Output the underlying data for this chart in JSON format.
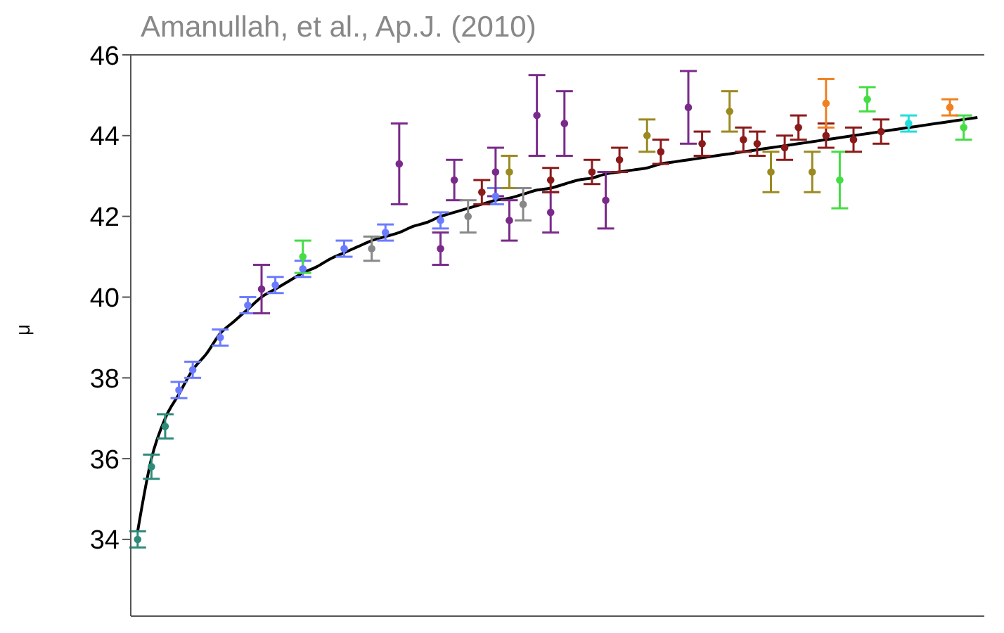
{
  "chart_data": {
    "type": "scatter",
    "annotations": [
      "Amanullah, et al., Ap.J. (2010)"
    ],
    "ylabel": "μ",
    "categories": [
      null,
      null,
      null,
      null,
      null,
      null,
      null,
      null,
      null,
      null,
      null,
      null,
      null,
      null,
      null,
      null,
      null,
      null,
      null,
      null,
      null,
      null,
      null,
      null,
      null,
      null,
      null,
      null,
      null,
      null,
      null,
      null,
      null,
      null,
      null,
      null,
      null,
      null,
      null,
      null,
      null,
      null,
      null,
      null,
      null,
      null,
      null,
      null,
      null,
      null,
      null,
      null,
      null,
      null,
      null,
      null,
      null,
      null,
      null,
      null,
      null,
      null
    ],
    "ylim": [
      32.1,
      46
    ],
    "yticks": [
      34,
      36,
      38,
      40,
      42,
      44,
      46
    ],
    "tick_labels": "y",
    "marker": "circle",
    "grid": false,
    "series": [
      {
        "type": "line",
        "color": "#000000",
        "line_style": "solid",
        "marker": "none",
        "values": [
          34.2,
          36.0,
          37.0,
          37.6,
          38.2,
          38.6,
          39.1,
          39.4,
          39.7,
          40.0,
          40.2,
          40.4,
          40.6,
          40.75,
          40.95,
          41.1,
          41.25,
          41.4,
          41.5,
          41.6,
          41.75,
          41.85,
          42.0,
          42.1,
          42.2,
          42.3,
          42.4,
          42.45,
          42.55,
          42.65,
          42.7,
          42.8,
          42.9,
          42.95,
          43.05,
          43.1,
          43.15,
          43.2,
          43.3,
          43.35,
          43.4,
          43.45,
          43.5,
          43.55,
          43.6,
          43.65,
          43.7,
          43.75,
          43.8,
          43.85,
          43.9,
          43.95,
          44.0,
          44.05,
          44.1,
          44.15,
          44.2,
          44.25,
          44.3,
          44.35,
          44.4,
          44.45
        ]
      },
      {
        "color": "#2e8b7a",
        "values": [
          34.0,
          35.8,
          36.8,
          null,
          null,
          null,
          null,
          null,
          null,
          null,
          null,
          null,
          null,
          null,
          null,
          null,
          null,
          null,
          null,
          null,
          null,
          null,
          null,
          null,
          null,
          null,
          null,
          null,
          null,
          null,
          null,
          null,
          null,
          null,
          null,
          null,
          null,
          null,
          null,
          null,
          null,
          null,
          null,
          null,
          null,
          null,
          null,
          null,
          null,
          null,
          null,
          null,
          null,
          null,
          null,
          null,
          null,
          null,
          null,
          null,
          null,
          null
        ],
        "errors": [
          0.2,
          0.3,
          0.3,
          null,
          null,
          null,
          null,
          null,
          null,
          null,
          null,
          null,
          null,
          null,
          null,
          null,
          null,
          null,
          null,
          null,
          null,
          null,
          null,
          null,
          null,
          null,
          null,
          null,
          null,
          null,
          null,
          null,
          null,
          null,
          null,
          null,
          null,
          null,
          null,
          null,
          null,
          null,
          null,
          null,
          null,
          null,
          null,
          null,
          null,
          null,
          null,
          null,
          null,
          null,
          null,
          null,
          null,
          null,
          null,
          null,
          null,
          null
        ]
      },
      {
        "color": "#6b7bff",
        "values": [
          null,
          null,
          null,
          37.7,
          38.2,
          null,
          39.0,
          null,
          39.8,
          null,
          40.3,
          null,
          40.7,
          null,
          null,
          41.2,
          null,
          null,
          41.6,
          null,
          null,
          null,
          41.9,
          null,
          null,
          null,
          42.5,
          null,
          null,
          null,
          null,
          null,
          null,
          null,
          null,
          null,
          null,
          null,
          null,
          null,
          null,
          null,
          null,
          null,
          null,
          null,
          null,
          null,
          null,
          null,
          null,
          null,
          null,
          null,
          null,
          null,
          null,
          null,
          null,
          null,
          null,
          null
        ],
        "errors": [
          null,
          null,
          null,
          0.2,
          0.2,
          null,
          0.2,
          null,
          0.2,
          null,
          0.2,
          null,
          0.2,
          null,
          null,
          0.2,
          null,
          null,
          0.2,
          null,
          null,
          null,
          0.2,
          null,
          null,
          null,
          0.2,
          null,
          null,
          null,
          null,
          null,
          null,
          null,
          null,
          null,
          null,
          null,
          null,
          null,
          null,
          null,
          null,
          null,
          null,
          null,
          null,
          null,
          null,
          null,
          null,
          null,
          null,
          null,
          null,
          null,
          null,
          null,
          null,
          null,
          null,
          null
        ]
      },
      {
        "color": "#7a2a8a",
        "values": [
          null,
          null,
          null,
          null,
          null,
          null,
          null,
          null,
          null,
          40.2,
          null,
          null,
          null,
          null,
          null,
          null,
          null,
          null,
          null,
          43.3,
          null,
          null,
          41.2,
          42.9,
          null,
          null,
          43.1,
          41.9,
          null,
          44.5,
          42.1,
          44.3,
          null,
          null,
          42.4,
          null,
          null,
          null,
          null,
          null,
          44.7,
          null,
          null,
          null,
          null,
          null,
          null,
          null,
          null,
          null,
          null,
          null,
          null,
          null,
          null,
          null,
          null,
          null,
          null,
          null,
          null,
          null
        ],
        "errors": [
          null,
          null,
          null,
          null,
          null,
          null,
          null,
          null,
          null,
          0.6,
          null,
          null,
          null,
          null,
          null,
          null,
          null,
          null,
          null,
          1.0,
          null,
          null,
          0.4,
          0.5,
          null,
          null,
          0.6,
          0.5,
          null,
          1.0,
          0.5,
          0.8,
          null,
          null,
          0.7,
          null,
          null,
          null,
          null,
          null,
          0.9,
          null,
          null,
          null,
          null,
          null,
          null,
          null,
          null,
          null,
          null,
          null,
          null,
          null,
          null,
          null,
          null,
          null,
          null,
          null,
          null,
          null
        ]
      },
      {
        "color": "#44dd44",
        "values": [
          null,
          null,
          null,
          null,
          null,
          null,
          null,
          null,
          null,
          null,
          null,
          null,
          41.0,
          null,
          null,
          null,
          null,
          null,
          null,
          null,
          null,
          null,
          null,
          null,
          null,
          null,
          null,
          null,
          null,
          null,
          null,
          null,
          null,
          null,
          null,
          null,
          null,
          null,
          null,
          null,
          null,
          null,
          null,
          null,
          null,
          null,
          null,
          null,
          null,
          null,
          null,
          42.9,
          null,
          44.9,
          null,
          null,
          null,
          null,
          null,
          null,
          44.2,
          null
        ],
        "errors": [
          null,
          null,
          null,
          null,
          null,
          null,
          null,
          null,
          null,
          null,
          null,
          null,
          0.4,
          null,
          null,
          null,
          null,
          null,
          null,
          null,
          null,
          null,
          null,
          null,
          null,
          null,
          null,
          null,
          null,
          null,
          null,
          null,
          null,
          null,
          null,
          null,
          null,
          null,
          null,
          null,
          null,
          null,
          null,
          null,
          null,
          null,
          null,
          null,
          null,
          null,
          null,
          0.7,
          null,
          0.3,
          null,
          null,
          null,
          null,
          null,
          null,
          0.3,
          null
        ]
      },
      {
        "color": "#9a8a20",
        "values": [
          null,
          null,
          null,
          null,
          null,
          null,
          null,
          null,
          null,
          null,
          null,
          null,
          null,
          null,
          null,
          null,
          null,
          null,
          null,
          null,
          null,
          null,
          null,
          null,
          null,
          null,
          null,
          43.1,
          null,
          null,
          null,
          null,
          null,
          null,
          null,
          null,
          null,
          44.0,
          null,
          null,
          null,
          null,
          null,
          44.6,
          null,
          null,
          43.1,
          null,
          null,
          43.1,
          null,
          null,
          null,
          null,
          null,
          null,
          null,
          null,
          null,
          null,
          null,
          null
        ],
        "errors": [
          null,
          null,
          null,
          null,
          null,
          null,
          null,
          null,
          null,
          null,
          null,
          null,
          null,
          null,
          null,
          null,
          null,
          null,
          null,
          null,
          null,
          null,
          null,
          null,
          null,
          null,
          null,
          0.4,
          null,
          null,
          null,
          null,
          null,
          null,
          null,
          null,
          null,
          0.4,
          null,
          null,
          null,
          null,
          null,
          0.5,
          null,
          null,
          0.5,
          null,
          null,
          0.5,
          null,
          null,
          null,
          null,
          null,
          null,
          null,
          null,
          null,
          null,
          null,
          null
        ]
      },
      {
        "color": "#8b1a1a",
        "values": [
          null,
          null,
          null,
          null,
          null,
          null,
          null,
          null,
          null,
          null,
          null,
          null,
          null,
          null,
          null,
          null,
          null,
          null,
          null,
          null,
          null,
          null,
          null,
          null,
          null,
          42.6,
          null,
          null,
          null,
          null,
          42.9,
          null,
          null,
          43.1,
          null,
          43.4,
          null,
          null,
          43.6,
          null,
          null,
          43.8,
          null,
          null,
          43.9,
          43.8,
          null,
          43.7,
          44.2,
          null,
          44.0,
          null,
          43.9,
          null,
          44.1,
          null,
          null,
          null,
          null,
          null,
          null,
          null
        ],
        "errors": [
          null,
          null,
          null,
          null,
          null,
          null,
          null,
          null,
          null,
          null,
          null,
          null,
          null,
          null,
          null,
          null,
          null,
          null,
          null,
          null,
          null,
          null,
          null,
          null,
          null,
          0.3,
          null,
          null,
          null,
          null,
          0.3,
          null,
          null,
          0.3,
          null,
          0.3,
          null,
          null,
          0.3,
          null,
          null,
          0.3,
          null,
          null,
          0.3,
          0.3,
          null,
          0.3,
          0.3,
          null,
          0.3,
          null,
          0.3,
          null,
          0.3,
          null,
          null,
          null,
          null,
          null,
          null,
          null
        ]
      },
      {
        "color": "#f08020",
        "values": [
          null,
          null,
          null,
          null,
          null,
          null,
          null,
          null,
          null,
          null,
          null,
          null,
          null,
          null,
          null,
          null,
          null,
          null,
          null,
          null,
          null,
          null,
          null,
          null,
          null,
          null,
          null,
          null,
          null,
          null,
          null,
          null,
          null,
          null,
          null,
          null,
          null,
          null,
          null,
          null,
          null,
          null,
          null,
          null,
          null,
          null,
          null,
          null,
          null,
          null,
          44.8,
          null,
          null,
          null,
          null,
          null,
          null,
          null,
          null,
          44.7,
          null,
          null
        ],
        "errors": [
          null,
          null,
          null,
          null,
          null,
          null,
          null,
          null,
          null,
          null,
          null,
          null,
          null,
          null,
          null,
          null,
          null,
          null,
          null,
          null,
          null,
          null,
          null,
          null,
          null,
          null,
          null,
          null,
          null,
          null,
          null,
          null,
          null,
          null,
          null,
          null,
          null,
          null,
          null,
          null,
          null,
          null,
          null,
          null,
          null,
          null,
          null,
          null,
          null,
          null,
          0.6,
          null,
          null,
          null,
          null,
          null,
          null,
          null,
          null,
          0.2,
          null,
          null
        ]
      },
      {
        "color": "#22dddd",
        "values": [
          null,
          null,
          null,
          null,
          null,
          null,
          null,
          null,
          null,
          null,
          null,
          null,
          null,
          null,
          null,
          null,
          null,
          null,
          null,
          null,
          null,
          null,
          null,
          null,
          null,
          null,
          null,
          null,
          null,
          null,
          null,
          null,
          null,
          null,
          null,
          null,
          null,
          null,
          null,
          null,
          null,
          null,
          null,
          null,
          null,
          null,
          null,
          null,
          null,
          null,
          null,
          null,
          null,
          null,
          null,
          null,
          44.3,
          null,
          null,
          null,
          null,
          null
        ],
        "errors": [
          null,
          null,
          null,
          null,
          null,
          null,
          null,
          null,
          null,
          null,
          null,
          null,
          null,
          null,
          null,
          null,
          null,
          null,
          null,
          null,
          null,
          null,
          null,
          null,
          null,
          null,
          null,
          null,
          null,
          null,
          null,
          null,
          null,
          null,
          null,
          null,
          null,
          null,
          null,
          null,
          null,
          null,
          null,
          null,
          null,
          null,
          null,
          null,
          null,
          null,
          null,
          null,
          null,
          null,
          null,
          null,
          0.2,
          null,
          null,
          null,
          null,
          null
        ]
      },
      {
        "color": "#888888",
        "values": [
          null,
          null,
          null,
          null,
          null,
          null,
          null,
          null,
          null,
          null,
          null,
          null,
          null,
          null,
          null,
          null,
          null,
          41.2,
          null,
          null,
          null,
          null,
          null,
          null,
          42.0,
          null,
          null,
          null,
          42.3,
          null,
          null,
          null,
          null,
          null,
          null,
          null,
          null,
          null,
          null,
          null,
          null,
          null,
          null,
          null,
          null,
          null,
          null,
          null,
          null,
          null,
          null,
          null,
          null,
          null,
          null,
          null,
          null,
          null,
          null,
          null,
          null,
          null
        ],
        "errors": [
          null,
          null,
          null,
          null,
          null,
          null,
          null,
          null,
          null,
          null,
          null,
          null,
          null,
          null,
          null,
          null,
          null,
          0.3,
          null,
          null,
          null,
          null,
          null,
          null,
          0.4,
          null,
          null,
          null,
          0.4,
          null,
          null,
          null,
          null,
          null,
          null,
          null,
          null,
          null,
          null,
          null,
          null,
          null,
          null,
          null,
          null,
          null,
          null,
          null,
          null,
          null,
          null,
          null,
          null,
          null,
          null,
          null,
          null,
          null,
          null,
          null,
          null,
          null
        ]
      }
    ]
  }
}
